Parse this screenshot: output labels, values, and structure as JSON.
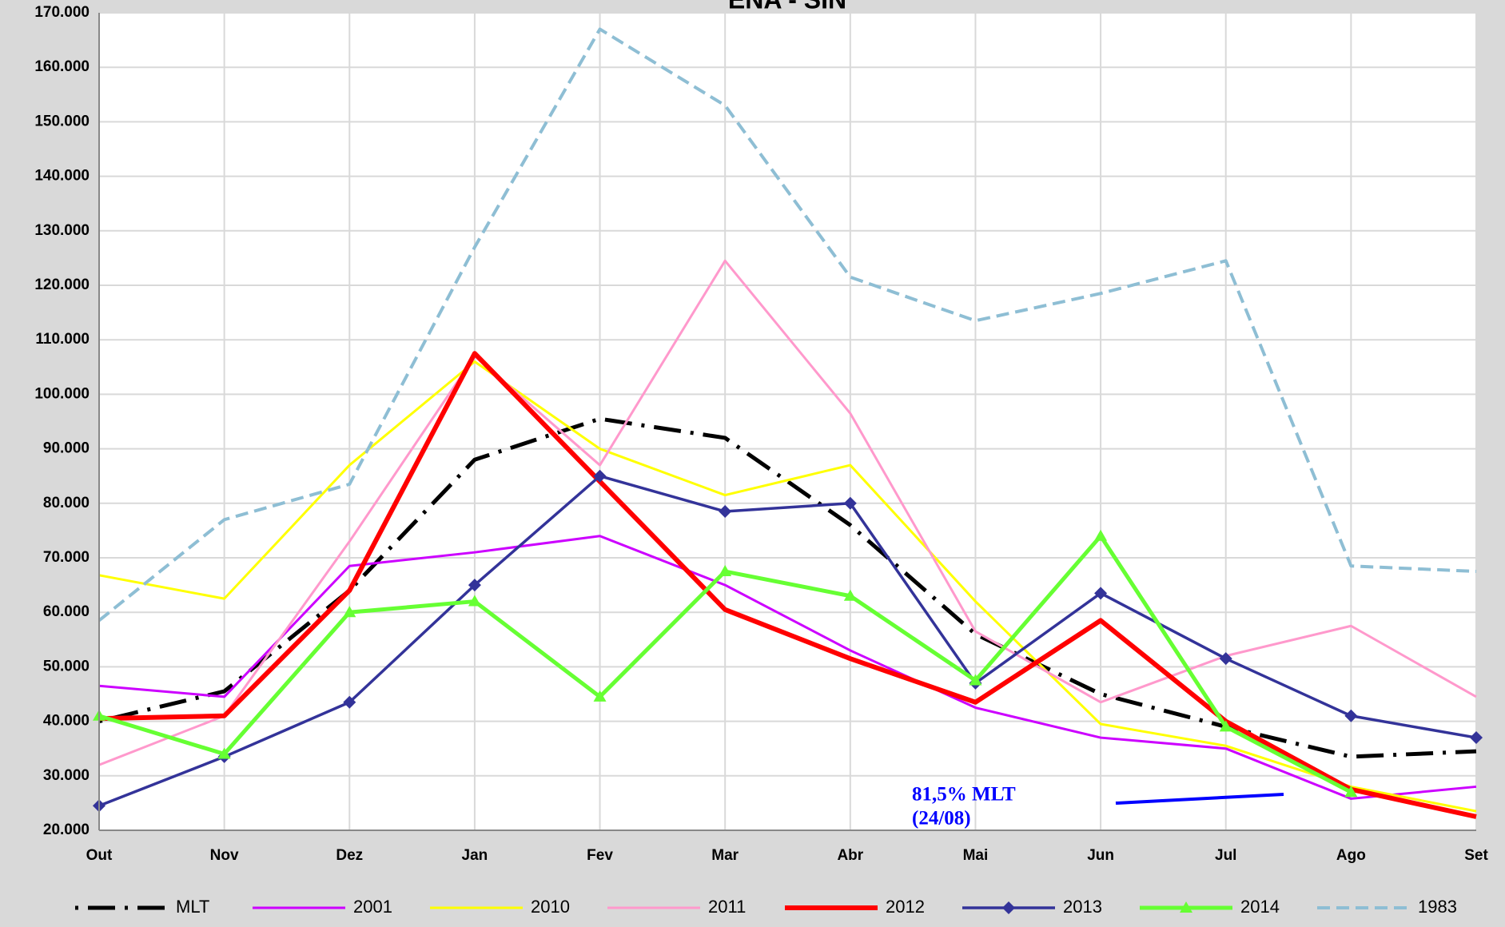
{
  "chart_data": {
    "type": "line",
    "title": "ENA - SIN",
    "categories": [
      "Out",
      "Nov",
      "Dez",
      "Jan",
      "Fev",
      "Mar",
      "Abr",
      "Mai",
      "Jun",
      "Jul",
      "Ago",
      "Set"
    ],
    "ylim": [
      20000,
      170000
    ],
    "yticks": [
      {
        "value": 20000,
        "label": "20.000"
      },
      {
        "value": 30000,
        "label": "30.000"
      },
      {
        "value": 40000,
        "label": "40.000"
      },
      {
        "value": 50000,
        "label": "50.000"
      },
      {
        "value": 60000,
        "label": "60.000"
      },
      {
        "value": 70000,
        "label": "70.000"
      },
      {
        "value": 80000,
        "label": "80.000"
      },
      {
        "value": 90000,
        "label": "90.000"
      },
      {
        "value": 100000,
        "label": "100.000"
      },
      {
        "value": 110000,
        "label": "110.000"
      },
      {
        "value": 120000,
        "label": "120.000"
      },
      {
        "value": 130000,
        "label": "130.000"
      },
      {
        "value": 140000,
        "label": "140.000"
      },
      {
        "value": 150000,
        "label": "150.000"
      },
      {
        "value": 160000,
        "label": "160.000"
      },
      {
        "value": 170000,
        "label": "170.000"
      }
    ],
    "grid": true,
    "annotation": [
      "81,5% MLT",
      "(24/08)"
    ],
    "series": [
      {
        "name": "MLT",
        "color": "#000000",
        "dash": "dashdot",
        "width": 5,
        "values": [
          40000,
          45500,
          64000,
          88000,
          95500,
          92000,
          76000,
          56000,
          45000,
          39000,
          33500,
          34500
        ]
      },
      {
        "name": "2001",
        "color": "#cc00ff",
        "width": 3,
        "values": [
          46500,
          44500,
          68500,
          71000,
          74000,
          65000,
          53000,
          42500,
          37000,
          35000,
          25800,
          28000
        ]
      },
      {
        "name": "2010",
        "color": "#ffff00",
        "width": 3,
        "values": [
          66800,
          62500,
          87000,
          106000,
          90000,
          81500,
          87000,
          62000,
          39500,
          35500,
          28000,
          23500
        ]
      },
      {
        "name": "2011",
        "color": "#ff99cc",
        "width": 3,
        "values": [
          32000,
          41000,
          73000,
          107000,
          87000,
          124500,
          96500,
          56500,
          43500,
          52000,
          57500,
          44500
        ]
      },
      {
        "name": "2012",
        "color": "#ff0000",
        "width": 6,
        "values": [
          40500,
          41000,
          64000,
          107500,
          84000,
          60500,
          51500,
          43500,
          58500,
          40000,
          27500,
          22500
        ]
      },
      {
        "name": "2013",
        "color": "#333399",
        "width": 3.5,
        "marker": "diamond",
        "values": [
          24500,
          33500,
          43500,
          65000,
          85000,
          78500,
          80000,
          47000,
          63500,
          51500,
          41000,
          37000
        ]
      },
      {
        "name": "2014",
        "color": "#66ff33",
        "width": 5,
        "marker": "triangle",
        "values": [
          41000,
          34000,
          60000,
          62000,
          44500,
          67500,
          63000,
          47500,
          74000,
          39000,
          27000,
          null
        ]
      },
      {
        "name": "1983",
        "color": "#8ebed4",
        "dash": "dash",
        "width": 4,
        "values": [
          58500,
          77000,
          83500,
          127000,
          167000,
          153000,
          121500,
          113500,
          118500,
          124500,
          68500,
          67500
        ]
      }
    ]
  }
}
